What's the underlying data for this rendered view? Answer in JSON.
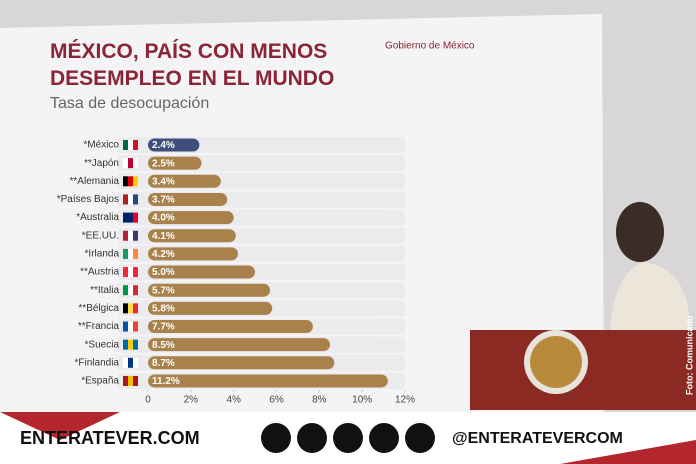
{
  "chart_data": {
    "type": "bar",
    "orientation": "horizontal",
    "title": "MÉXICO, PAÍS CON MENOS DESEMPLEO EN EL MUNDO",
    "subtitle": "Tasa de desocupación",
    "logo": "Gobierno de México",
    "categories": [
      "*México",
      "**Japón",
      "**Alemania",
      "*Países Bajos",
      "*Australia",
      "*EE.UU.",
      "*Irlanda",
      "**Austria",
      "**Italia",
      "**Bélgica",
      "**Francia",
      "*Suecia",
      "*Finlandia",
      "*España"
    ],
    "values": [
      2.4,
      2.5,
      3.4,
      3.7,
      4.0,
      4.1,
      4.2,
      5.0,
      5.7,
      5.8,
      7.7,
      8.5,
      8.7,
      11.2
    ],
    "value_labels": [
      "2.4%",
      "2.5%",
      "3.4%",
      "3.7%",
      "4.0%",
      "4.1%",
      "4.2%",
      "5.0%",
      "5.7%",
      "5.8%",
      "7.7%",
      "8.5%",
      "8.7%",
      "11.2%"
    ],
    "highlight_color": "#3f4f7c",
    "color": "#a9814b",
    "xlim": [
      0,
      12
    ],
    "xticks": [
      0,
      {
        "value": 2,
        "label": "2%"
      },
      {
        "value": 4,
        "label": "4%"
      },
      {
        "value": 6,
        "label": "6%"
      },
      {
        "value": 8,
        "label": "8%"
      },
      {
        "value": 10,
        "label": "10%"
      },
      {
        "value": 12,
        "label": "12%"
      }
    ]
  },
  "banner": {
    "site": "ENTERATEVER.COM",
    "handle": "@ENTERATEVERCOM"
  },
  "credit": "Foto: Comunicado"
}
